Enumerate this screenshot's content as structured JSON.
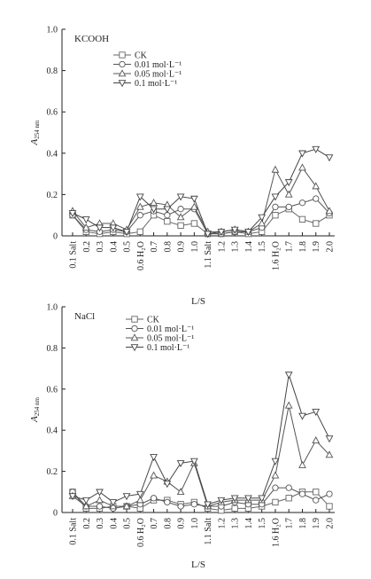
{
  "colors": {
    "axis": "#222222",
    "series": [
      "#666666",
      "#555555",
      "#555555",
      "#444444"
    ]
  },
  "chart_data": [
    {
      "type": "line",
      "panel_label": "KCOOH",
      "xlabel": "L/S",
      "ylabel_main": "A",
      "ylabel_sub": "254 nm",
      "ylim": [
        0,
        1.0
      ],
      "yticks": [
        "0",
        "0.2",
        "0.4",
        "0.6",
        "0.8",
        "1.0"
      ],
      "categories": [
        "0.1 Salt",
        "0.2",
        "0.3",
        "0.4",
        "0.5",
        "0.6 H₂O",
        "0.7",
        "0.8",
        "0.9",
        "1.0",
        "1.1 Salt",
        "1.2",
        "1.3",
        "1.4",
        "1.5",
        "1.6 H₂O",
        "1.7",
        "1.8",
        "1.9",
        "2.0"
      ],
      "legend_placement": "top-center",
      "series": [
        {
          "name": "CK",
          "marker": "square",
          "values": [
            0.1,
            0.02,
            0.01,
            0.02,
            0.01,
            0.02,
            0.1,
            0.07,
            0.05,
            0.06,
            0.01,
            0.01,
            0.02,
            0.01,
            0.02,
            0.1,
            0.13,
            0.08,
            0.06,
            0.1
          ]
        },
        {
          "name": "0.01 mol·L⁻¹",
          "marker": "circle",
          "values": [
            0.1,
            0.03,
            0.02,
            0.03,
            0.02,
            0.1,
            0.12,
            0.1,
            0.13,
            0.13,
            0.01,
            0.01,
            0.02,
            0.02,
            0.04,
            0.14,
            0.14,
            0.16,
            0.18,
            0.11
          ]
        },
        {
          "name": "0.05 mol·L⁻¹",
          "marker": "triangle-up",
          "values": [
            0.12,
            0.04,
            0.06,
            0.06,
            0.03,
            0.14,
            0.16,
            0.15,
            0.09,
            0.14,
            0.02,
            0.02,
            0.03,
            0.02,
            0.06,
            0.32,
            0.2,
            0.33,
            0.24,
            0.12
          ]
        },
        {
          "name": "0.1 mol·L⁻¹",
          "marker": "triangle-down",
          "values": [
            0.11,
            0.08,
            0.04,
            0.04,
            0.02,
            0.19,
            0.13,
            0.13,
            0.19,
            0.18,
            0.01,
            0.02,
            0.03,
            0.02,
            0.09,
            0.19,
            0.26,
            0.4,
            0.42,
            0.38
          ]
        }
      ]
    },
    {
      "type": "line",
      "panel_label": "NaCl",
      "xlabel": "L/S",
      "ylabel_main": "A",
      "ylabel_sub": "254 nm",
      "ylim": [
        0,
        1.0
      ],
      "yticks": [
        "0",
        "0.2",
        "0.4",
        "0.6",
        "0.8",
        "1.0"
      ],
      "categories": [
        "0.1 Salt",
        "0.2",
        "0.3",
        "0.4",
        "0.5",
        "0.6 H₂O",
        "0.7",
        "0.8",
        "0.9",
        "1.0",
        "1.1 Salt",
        "1.2",
        "1.3",
        "1.4",
        "1.5",
        "1.6 H₂O",
        "1.7",
        "1.8",
        "1.9",
        "2.0"
      ],
      "legend_placement": "top-center",
      "series": [
        {
          "name": "CK",
          "marker": "square",
          "values": [
            0.1,
            0.02,
            0.02,
            0.03,
            0.03,
            0.02,
            0.06,
            0.06,
            0.04,
            0.05,
            0.02,
            0.01,
            0.02,
            0.02,
            0.03,
            0.05,
            0.07,
            0.1,
            0.1,
            0.03
          ]
        },
        {
          "name": "0.01 mol·L⁻¹",
          "marker": "circle",
          "values": [
            0.1,
            0.03,
            0.03,
            0.02,
            0.03,
            0.04,
            0.07,
            0.05,
            0.03,
            0.04,
            0.03,
            0.03,
            0.05,
            0.04,
            0.04,
            0.12,
            0.12,
            0.09,
            0.06,
            0.09
          ]
        },
        {
          "name": "0.05 mol·L⁻¹",
          "marker": "triangle-up",
          "values": [
            0.08,
            0.03,
            0.06,
            0.03,
            0.03,
            0.06,
            0.18,
            0.15,
            0.1,
            0.24,
            0.03,
            0.05,
            0.06,
            0.06,
            0.06,
            0.18,
            0.52,
            0.23,
            0.35,
            0.28
          ]
        },
        {
          "name": "0.1 mol·L⁻¹",
          "marker": "triangle-down",
          "values": [
            0.08,
            0.06,
            0.1,
            0.05,
            0.08,
            0.09,
            0.27,
            0.14,
            0.24,
            0.25,
            0.04,
            0.06,
            0.07,
            0.07,
            0.07,
            0.25,
            0.67,
            0.47,
            0.49,
            0.36
          ]
        }
      ]
    }
  ]
}
